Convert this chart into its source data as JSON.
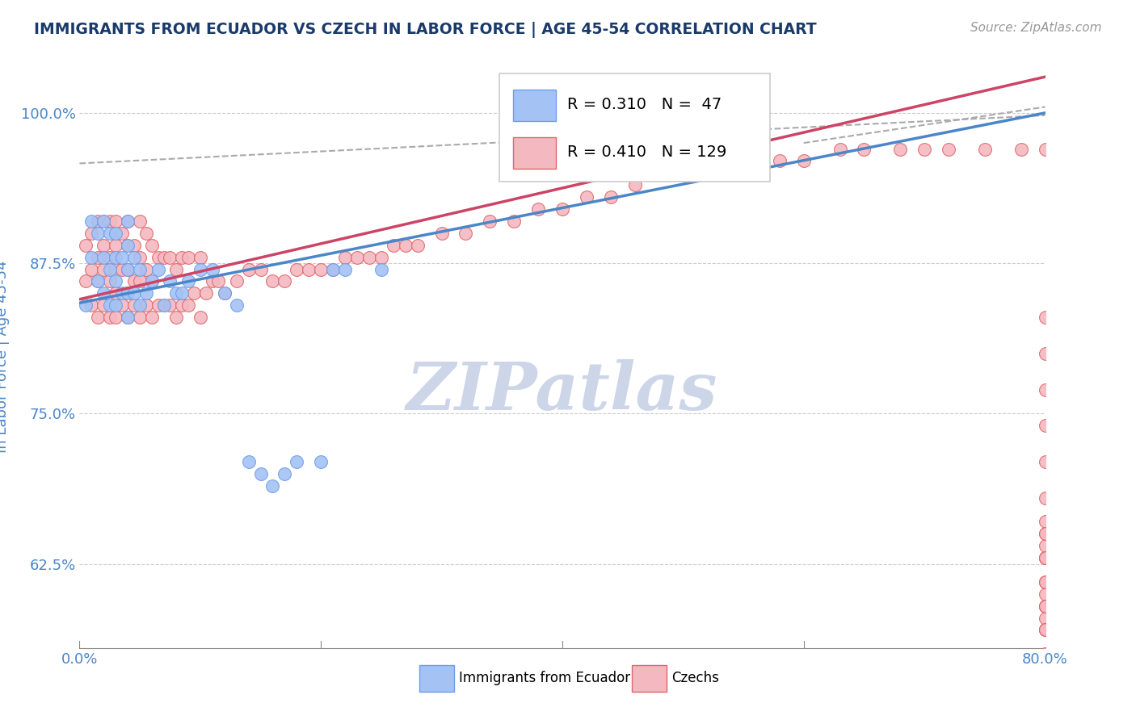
{
  "title": "IMMIGRANTS FROM ECUADOR VS CZECH IN LABOR FORCE | AGE 45-54 CORRELATION CHART",
  "source": "Source: ZipAtlas.com",
  "ylabel": "In Labor Force | Age 45-54",
  "xlim": [
    0.0,
    0.8
  ],
  "ylim": [
    0.555,
    1.04
  ],
  "yticks": [
    0.625,
    0.75,
    0.875,
    1.0
  ],
  "ytick_labels": [
    "62.5%",
    "75.0%",
    "87.5%",
    "100.0%"
  ],
  "xtick_labels": [
    "0.0%",
    "",
    "",
    "",
    "80.0%"
  ],
  "xtick_positions": [
    0.0,
    0.2,
    0.4,
    0.6,
    0.8
  ],
  "ecuador_R": 0.31,
  "ecuador_N": 47,
  "czech_R": 0.41,
  "czech_N": 129,
  "ecuador_color": "#a4c2f4",
  "czech_color": "#f4b8c1",
  "ecuador_edge_color": "#6d9eeb",
  "czech_edge_color": "#e06666",
  "ecuador_line_color": "#4a86c8",
  "czech_line_color": "#cc4466",
  "dash_line_color": "#aaaaaa",
  "grid_color": "#cccccc",
  "title_color": "#1a3a6b",
  "axis_label_color": "#4a86c8",
  "watermark_text": "ZIPatlas",
  "watermark_color": "#cdd5e8",
  "ecuador_x": [
    0.005,
    0.01,
    0.01,
    0.015,
    0.015,
    0.02,
    0.02,
    0.02,
    0.025,
    0.025,
    0.025,
    0.03,
    0.03,
    0.03,
    0.03,
    0.035,
    0.035,
    0.04,
    0.04,
    0.04,
    0.04,
    0.04,
    0.045,
    0.045,
    0.05,
    0.05,
    0.055,
    0.06,
    0.065,
    0.07,
    0.075,
    0.08,
    0.085,
    0.09,
    0.1,
    0.11,
    0.12,
    0.13,
    0.14,
    0.15,
    0.16,
    0.17,
    0.18,
    0.2,
    0.21,
    0.22,
    0.25
  ],
  "ecuador_y": [
    0.84,
    0.88,
    0.91,
    0.86,
    0.9,
    0.85,
    0.88,
    0.91,
    0.84,
    0.87,
    0.9,
    0.84,
    0.86,
    0.88,
    0.9,
    0.85,
    0.88,
    0.83,
    0.85,
    0.87,
    0.89,
    0.91,
    0.85,
    0.88,
    0.84,
    0.87,
    0.85,
    0.86,
    0.87,
    0.84,
    0.86,
    0.85,
    0.85,
    0.86,
    0.87,
    0.87,
    0.85,
    0.84,
    0.71,
    0.7,
    0.69,
    0.7,
    0.71,
    0.71,
    0.87,
    0.87,
    0.87
  ],
  "czech_x": [
    0.005,
    0.005,
    0.01,
    0.01,
    0.01,
    0.015,
    0.015,
    0.015,
    0.015,
    0.02,
    0.02,
    0.02,
    0.02,
    0.025,
    0.025,
    0.025,
    0.025,
    0.03,
    0.03,
    0.03,
    0.03,
    0.03,
    0.035,
    0.035,
    0.035,
    0.04,
    0.04,
    0.04,
    0.04,
    0.04,
    0.045,
    0.045,
    0.045,
    0.05,
    0.05,
    0.05,
    0.05,
    0.055,
    0.055,
    0.055,
    0.06,
    0.06,
    0.06,
    0.065,
    0.065,
    0.07,
    0.07,
    0.075,
    0.075,
    0.08,
    0.08,
    0.085,
    0.085,
    0.09,
    0.09,
    0.095,
    0.1,
    0.1,
    0.105,
    0.11,
    0.115,
    0.12,
    0.13,
    0.14,
    0.15,
    0.16,
    0.17,
    0.18,
    0.19,
    0.2,
    0.21,
    0.22,
    0.23,
    0.24,
    0.25,
    0.26,
    0.27,
    0.28,
    0.3,
    0.32,
    0.34,
    0.36,
    0.38,
    0.4,
    0.42,
    0.44,
    0.46,
    0.5,
    0.52,
    0.55,
    0.58,
    0.6,
    0.63,
    0.65,
    0.68,
    0.7,
    0.72,
    0.75,
    0.78,
    0.8,
    0.8,
    0.8,
    0.8,
    0.8,
    0.8,
    0.8,
    0.8,
    0.8,
    0.8,
    0.8,
    0.8,
    0.8,
    0.8,
    0.8,
    0.8,
    0.8,
    0.8,
    0.8,
    0.8,
    0.8,
    0.8,
    0.8,
    0.8,
    0.8,
    0.8,
    0.8,
    0.8,
    0.8,
    0.8
  ],
  "czech_y": [
    0.86,
    0.89,
    0.84,
    0.87,
    0.9,
    0.83,
    0.86,
    0.88,
    0.91,
    0.84,
    0.87,
    0.89,
    0.91,
    0.83,
    0.86,
    0.88,
    0.91,
    0.83,
    0.85,
    0.87,
    0.89,
    0.91,
    0.84,
    0.87,
    0.9,
    0.83,
    0.85,
    0.87,
    0.89,
    0.91,
    0.84,
    0.86,
    0.89,
    0.83,
    0.86,
    0.88,
    0.91,
    0.84,
    0.87,
    0.9,
    0.83,
    0.86,
    0.89,
    0.84,
    0.88,
    0.84,
    0.88,
    0.84,
    0.88,
    0.83,
    0.87,
    0.84,
    0.88,
    0.84,
    0.88,
    0.85,
    0.83,
    0.88,
    0.85,
    0.86,
    0.86,
    0.85,
    0.86,
    0.87,
    0.87,
    0.86,
    0.86,
    0.87,
    0.87,
    0.87,
    0.87,
    0.88,
    0.88,
    0.88,
    0.88,
    0.89,
    0.89,
    0.89,
    0.9,
    0.9,
    0.91,
    0.91,
    0.92,
    0.92,
    0.93,
    0.93,
    0.94,
    0.95,
    0.95,
    0.95,
    0.96,
    0.96,
    0.97,
    0.97,
    0.97,
    0.97,
    0.97,
    0.97,
    0.97,
    0.97,
    0.83,
    0.8,
    0.77,
    0.74,
    0.71,
    0.68,
    0.65,
    0.63,
    0.6,
    0.59,
    0.58,
    0.57,
    0.64,
    0.66,
    0.65,
    0.63,
    0.61,
    0.59,
    0.57,
    0.63,
    0.61,
    0.59,
    0.57,
    0.55,
    0.63,
    0.61,
    0.59,
    0.57,
    0.55
  ]
}
